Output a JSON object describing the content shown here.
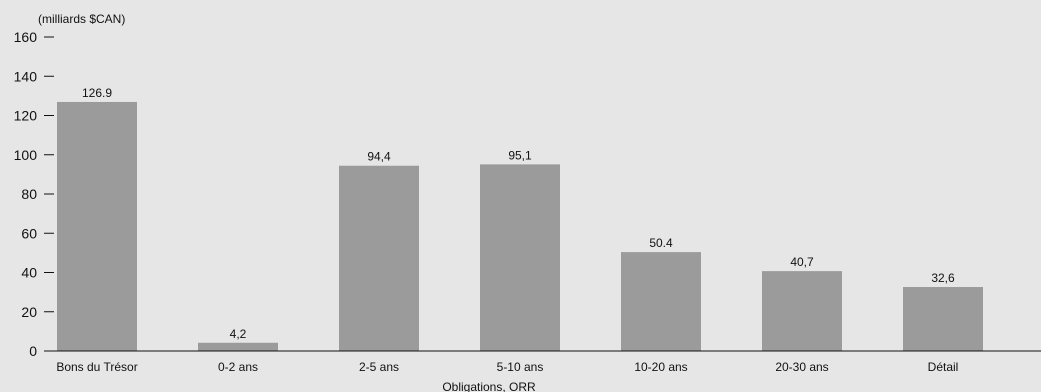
{
  "chart_data": {
    "type": "bar",
    "ylabel": "(milliards $CAN)",
    "xlabel": "Obligations, ORR",
    "ylim": [
      0,
      160
    ],
    "yticks": [
      0,
      20,
      40,
      60,
      80,
      100,
      120,
      140,
      160
    ],
    "categories": [
      "Bons du Trésor",
      "0-2 ans",
      "2-5 ans",
      "5-10 ans",
      "10-20 ans",
      "20-30 ans",
      "Détail"
    ],
    "values": [
      126.9,
      4.2,
      94.4,
      95.1,
      50.4,
      40.7,
      32.6
    ],
    "value_labels": [
      "126.9",
      "4,2",
      "94,4",
      "95,1",
      "50.4",
      "40,7",
      "32,6"
    ],
    "bar_color": "#9b9b9b",
    "background_color": "#e6e6e6",
    "grid": false
  }
}
